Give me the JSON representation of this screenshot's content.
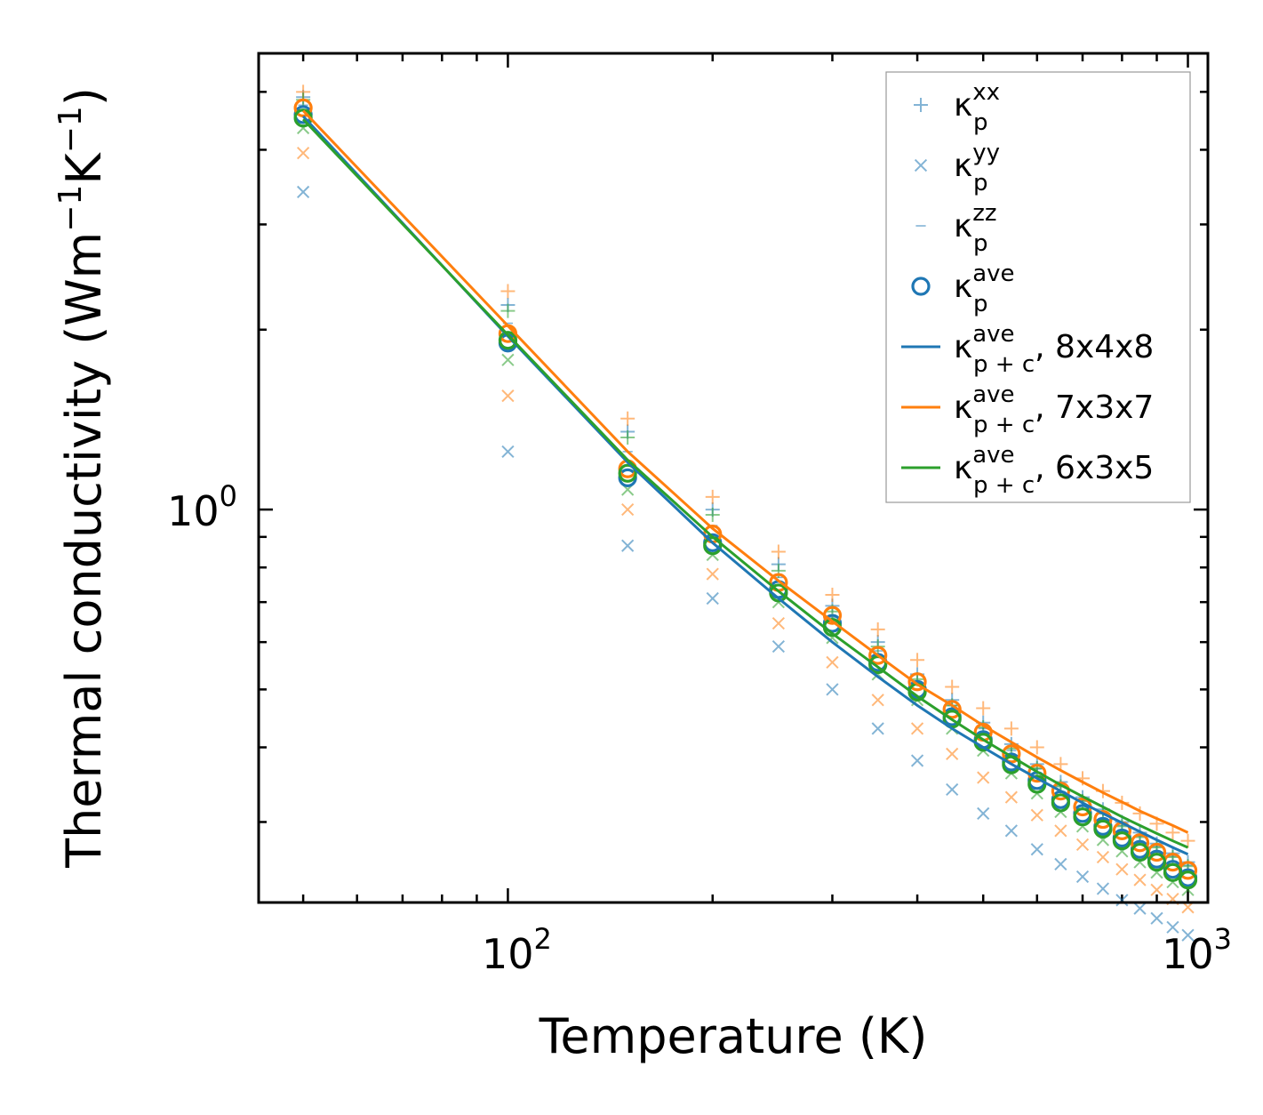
{
  "chart_data": {
    "type": "scatter",
    "title": "",
    "xlabel": "Temperature (K)",
    "ylabel_parts": {
      "base": "Thermal conductivity (Wm",
      "exp1": "−1",
      "mid": "K",
      "exp2": "−1",
      "close": ")"
    },
    "xscale": "log",
    "yscale": "log",
    "xlim": [
      43,
      1070
    ],
    "ylim": [
      0.22,
      5.8
    ],
    "x_ticks": [
      {
        "value": 100,
        "base": "10",
        "exp": "2"
      },
      {
        "value": 1000,
        "base": "10",
        "exp": "3"
      }
    ],
    "y_ticks": [
      {
        "value": 1,
        "base": "10",
        "exp": "0"
      }
    ],
    "legend_position": "top-right",
    "colors": {
      "c1": "#1f77b4",
      "c2": "#ff7f0e",
      "c3": "#2ca02c"
    },
    "x": [
      50,
      100,
      150,
      200,
      250,
      300,
      350,
      400,
      450,
      500,
      550,
      600,
      650,
      700,
      750,
      800,
      850,
      900,
      950,
      1000
    ],
    "series": [
      {
        "name": "κ_p^xx",
        "label_base": "κ",
        "label_sub": "p",
        "label_sup": "xx",
        "marker": "plus",
        "color": "#1f77b4",
        "values": [
          4.9,
          2.2,
          1.35,
          1.0,
          0.81,
          0.69,
          0.6,
          0.53,
          0.48,
          0.44,
          0.405,
          0.375,
          0.35,
          0.33,
          0.315,
          0.3,
          0.288,
          0.276,
          0.266,
          0.257
        ]
      },
      {
        "name": "κ_p^yy",
        "label_base": "κ",
        "label_sub": "p",
        "label_sup": "yy",
        "marker": "x",
        "color": "#1f77b4",
        "values": [
          3.4,
          1.25,
          0.87,
          0.71,
          0.59,
          0.5,
          0.43,
          0.38,
          0.34,
          0.31,
          0.29,
          0.27,
          0.255,
          0.243,
          0.232,
          0.222,
          0.215,
          0.207,
          0.2,
          0.194
        ]
      },
      {
        "name": "κ_p^zz",
        "label_base": "κ",
        "label_sub": "p",
        "label_sup": "zz",
        "marker": "hline",
        "color": "#1f77b4",
        "values": [
          4.75,
          2.05,
          1.25,
          0.94,
          0.77,
          0.66,
          0.58,
          0.515,
          0.47,
          0.43,
          0.395,
          0.368,
          0.345,
          0.326,
          0.31,
          0.296,
          0.284,
          0.273,
          0.263,
          0.254
        ]
      },
      {
        "name": "κ_p^ave",
        "label_base": "κ",
        "label_sub": "p",
        "label_sup": "ave",
        "marker": "circle",
        "color": "#1f77b4",
        "values": [
          4.58,
          1.9,
          1.13,
          0.88,
          0.735,
          0.645,
          0.555,
          0.5,
          0.45,
          0.412,
          0.378,
          0.352,
          0.327,
          0.31,
          0.295,
          0.282,
          0.27,
          0.26,
          0.25,
          0.242
        ]
      },
      {
        "name": "κ_p+c^ave, 8x4x8",
        "label_base": "κ",
        "label_sub": "p + c",
        "label_sup": "ave",
        "label_suffix": ", 8x4x8",
        "marker": "line",
        "color": "#1f77b4",
        "values": [
          4.55,
          1.95,
          1.2,
          0.88,
          0.71,
          0.6,
          0.525,
          0.47,
          0.43,
          0.4,
          0.375,
          0.355,
          0.338,
          0.323,
          0.31,
          0.299,
          0.289,
          0.28,
          0.272,
          0.265
        ]
      },
      {
        "name": "κ_p^xx (7x3x7)",
        "marker": "plus",
        "color": "#ff7f0e",
        "legend": false,
        "values": [
          5.0,
          2.32,
          1.42,
          1.05,
          0.85,
          0.72,
          0.63,
          0.56,
          0.505,
          0.465,
          0.43,
          0.4,
          0.375,
          0.355,
          0.338,
          0.323,
          0.31,
          0.298,
          0.288,
          0.279
        ]
      },
      {
        "name": "κ_p^yy (7x3x7)",
        "marker": "x",
        "color": "#ff7f0e",
        "legend": false,
        "values": [
          3.95,
          1.55,
          1.0,
          0.78,
          0.645,
          0.555,
          0.48,
          0.43,
          0.39,
          0.356,
          0.33,
          0.308,
          0.29,
          0.275,
          0.262,
          0.25,
          0.24,
          0.231,
          0.223,
          0.216
        ]
      },
      {
        "name": "κ_p^ave (7x3x7)",
        "marker": "circle",
        "color": "#ff7f0e",
        "legend": false,
        "values": [
          4.7,
          1.97,
          1.17,
          0.91,
          0.755,
          0.665,
          0.57,
          0.515,
          0.463,
          0.424,
          0.39,
          0.362,
          0.338,
          0.318,
          0.303,
          0.29,
          0.277,
          0.267,
          0.257,
          0.249
        ]
      },
      {
        "name": "κ_p+c^ave, 7x3x7",
        "label_base": "κ",
        "label_sub": "p + c",
        "label_sup": "ave",
        "label_suffix": ", 7x3x7",
        "marker": "line",
        "color": "#ff7f0e",
        "values": [
          4.65,
          2.03,
          1.25,
          0.93,
          0.76,
          0.65,
          0.57,
          0.51,
          0.47,
          0.435,
          0.408,
          0.385,
          0.366,
          0.35,
          0.336,
          0.324,
          0.313,
          0.304,
          0.296,
          0.288
        ]
      },
      {
        "name": "κ_p^xx (6x3x5)",
        "marker": "plus",
        "color": "#2ca02c",
        "legend": false,
        "values": [
          4.85,
          2.15,
          1.32,
          0.98,
          0.79,
          0.675,
          0.59,
          0.52,
          0.47,
          0.432,
          0.398,
          0.369,
          0.344,
          0.325,
          0.31,
          0.295,
          0.283,
          0.272,
          0.262,
          0.253
        ]
      },
      {
        "name": "κ_p^yy (6x3x5)",
        "marker": "x",
        "color": "#2ca02c",
        "legend": false,
        "values": [
          4.35,
          1.78,
          1.08,
          0.84,
          0.7,
          0.61,
          0.53,
          0.48,
          0.43,
          0.395,
          0.362,
          0.335,
          0.312,
          0.295,
          0.28,
          0.268,
          0.257,
          0.247,
          0.238,
          0.231
        ]
      },
      {
        "name": "κ_p^ave (6x3x5)",
        "marker": "circle",
        "color": "#2ca02c",
        "legend": false,
        "values": [
          4.52,
          1.92,
          1.15,
          0.87,
          0.725,
          0.635,
          0.55,
          0.495,
          0.446,
          0.408,
          0.374,
          0.347,
          0.323,
          0.306,
          0.292,
          0.279,
          0.267,
          0.257,
          0.247,
          0.24
        ]
      },
      {
        "name": "κ_p+c^ave, 6x3x5",
        "label_base": "κ",
        "label_sub": "p + c",
        "label_sup": "ave",
        "label_suffix": ", 6x3x5",
        "marker": "line",
        "color": "#2ca02c",
        "values": [
          4.5,
          1.96,
          1.21,
          0.9,
          0.73,
          0.62,
          0.545,
          0.487,
          0.445,
          0.412,
          0.386,
          0.364,
          0.346,
          0.331,
          0.318,
          0.306,
          0.296,
          0.287,
          0.279,
          0.272
        ]
      }
    ]
  }
}
